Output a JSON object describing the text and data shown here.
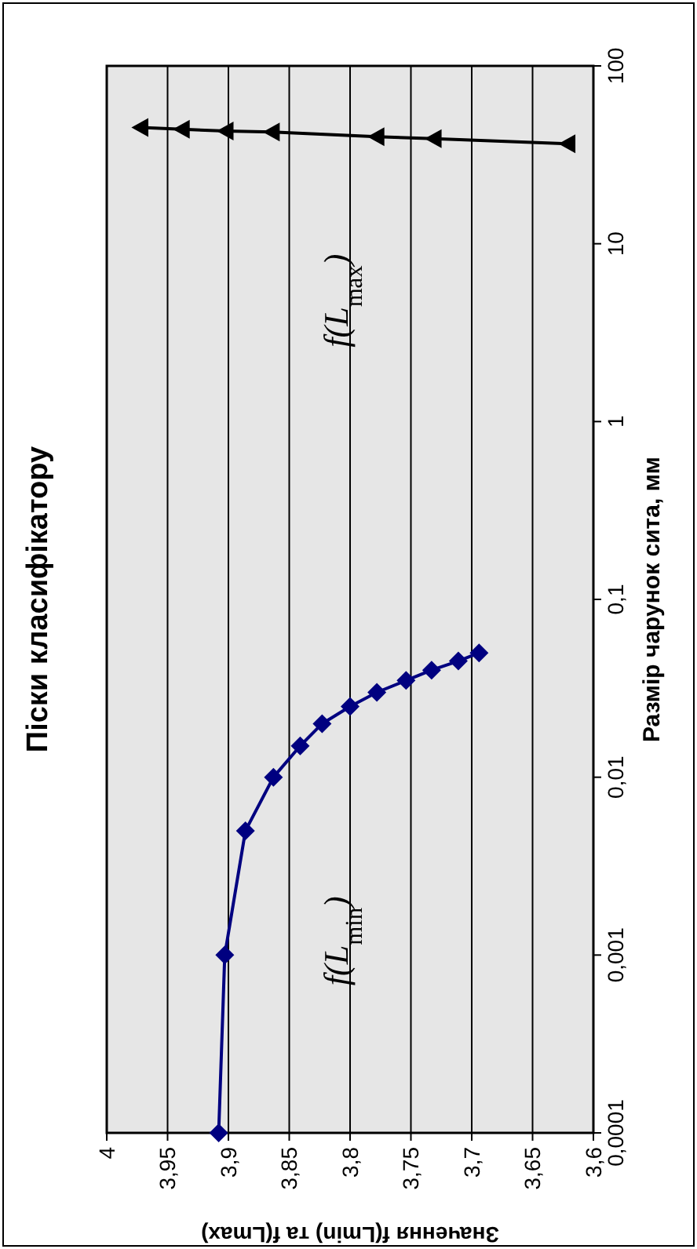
{
  "chart_data": {
    "type": "line",
    "title": "Піски класифікатору",
    "xlabel": "Значення f(Lmin) та f(Lmax)",
    "ylabel": "Размір чарунок сита, мм",
    "log": "y",
    "grid": "x",
    "ylim": [
      0.0001,
      100
    ],
    "yticks": [
      {
        "value": 0.0001,
        "label": "0,0001"
      },
      {
        "value": 0.001,
        "label": "0,001"
      },
      {
        "value": 0.01,
        "label": "0,01"
      },
      {
        "value": 0.1,
        "label": "0,1"
      },
      1,
      10,
      100
    ],
    "xlim": [
      4,
      3.6
    ],
    "xticks": [
      4,
      {
        "value": 3.95,
        "label": "3,95"
      },
      {
        "value": 3.9,
        "label": "3,9"
      },
      {
        "value": 3.85,
        "label": "3,85"
      },
      {
        "value": 3.8,
        "label": "3,8"
      },
      {
        "value": 3.75,
        "label": "3,75"
      },
      {
        "value": 3.7,
        "label": "3,7"
      },
      {
        "value": 3.65,
        "label": "3,65"
      },
      {
        "value": 3.6,
        "label": "3,6"
      }
    ],
    "series": [
      {
        "color": "#000080",
        "marker": "diamond",
        "x": [
          3.908,
          3.903,
          3.886,
          3.863,
          3.841,
          3.823,
          3.8,
          3.778,
          3.754,
          3.733,
          3.711,
          3.694
        ],
        "values": [
          0.0001,
          0.001,
          0.005,
          0.01,
          0.015,
          0.02,
          0.025,
          0.03,
          0.035,
          0.04,
          0.045,
          0.05
        ]
      },
      {
        "color": "#000000",
        "marker": "triangle",
        "x": [
          3.972,
          3.938,
          3.902,
          3.864,
          3.778,
          3.731,
          3.621
        ],
        "values": [
          45,
          44,
          43,
          42.5,
          40,
          39,
          36.5
        ]
      }
    ],
    "annotations": [
      "f(L$_{min}$)",
      "f(L$_{max}$)"
    ]
  }
}
